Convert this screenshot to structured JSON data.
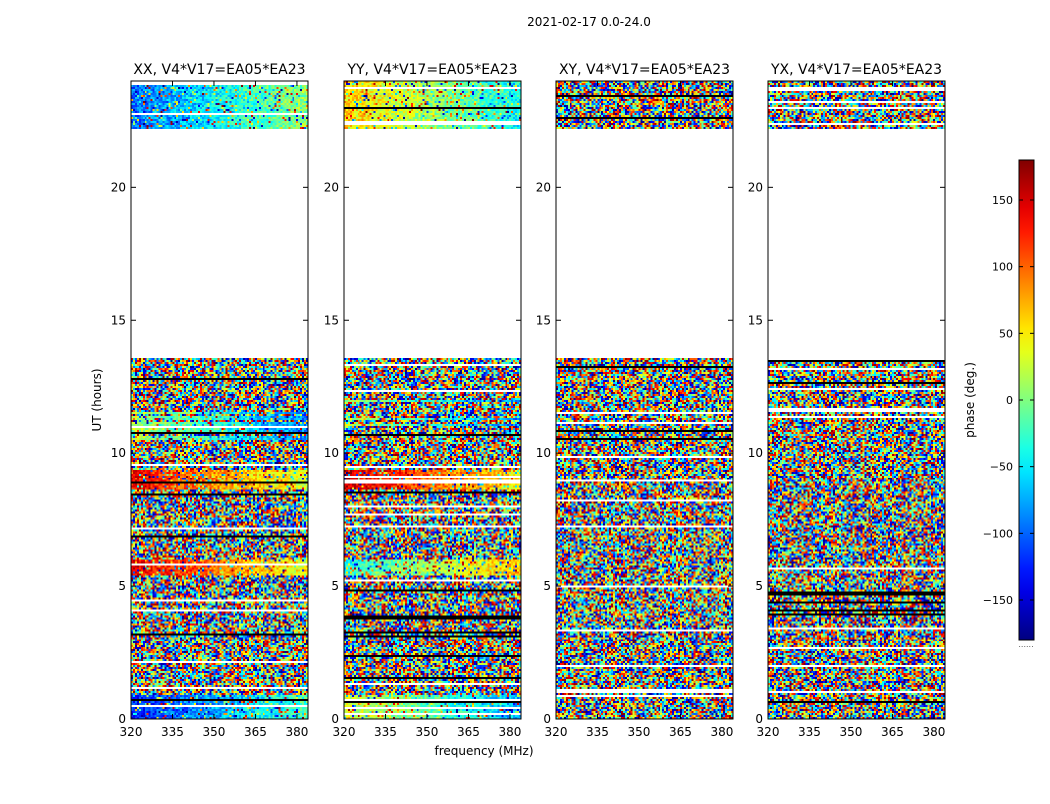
{
  "figure_title": "2021-02-17 0.0-24.0",
  "chart_data": {
    "type": "heatmap",
    "xlabel": "frequency (MHz)",
    "ylabel": "UT (hours)",
    "x_ticks": [
      "320",
      "335",
      "350",
      "365",
      "380"
    ],
    "y_ticks": [
      "0",
      "5",
      "10",
      "15",
      "20"
    ],
    "xlim": [
      320,
      384
    ],
    "ylim": [
      0,
      24
    ],
    "panels": [
      {
        "title": "XX, V4*V17=EA05*EA23",
        "correlation": "XX"
      },
      {
        "title": "YY, V4*V17=EA05*EA23",
        "correlation": "YY"
      },
      {
        "title": "XY, V4*V17=EA05*EA23",
        "correlation": "XY"
      },
      {
        "title": "YX, V4*V17=EA05*EA23",
        "correlation": "YX"
      }
    ],
    "data_present_ut_ranges": [
      [
        0.0,
        13.6
      ],
      [
        22.2,
        24.0
      ]
    ],
    "colorbar": {
      "label": "phase (deg.)",
      "ticks": [
        "150",
        "100",
        "50",
        "0",
        "−50",
        "−100",
        "−150"
      ],
      "range": [
        -180,
        180
      ],
      "colormap": "jet",
      "underflow_label": "......"
    }
  }
}
